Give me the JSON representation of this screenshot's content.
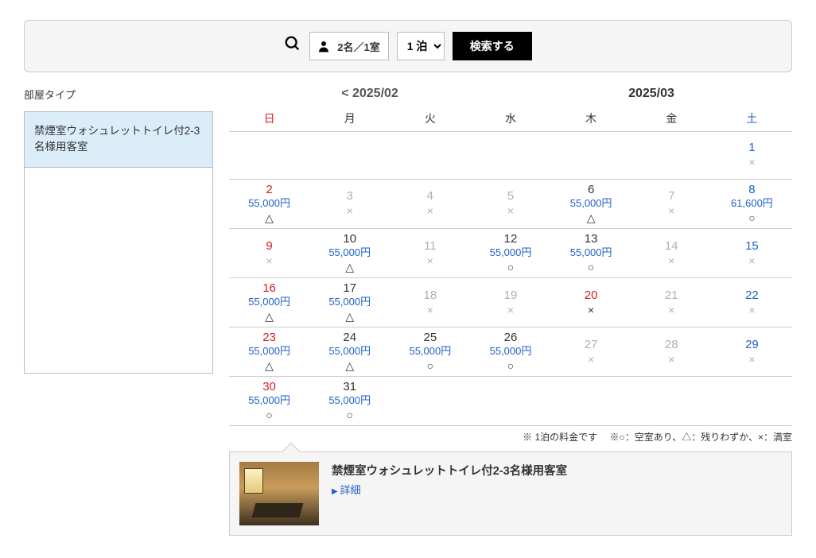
{
  "search": {
    "guests": "2名／1室",
    "nights_options": [
      "1 泊"
    ],
    "nights_selected": "1 泊",
    "button": "検索する"
  },
  "sidebar": {
    "title": "部屋タイプ",
    "items": [
      {
        "label": "禁煙室ウォシュレットトイレ付2-3名様用客室"
      }
    ]
  },
  "calendar": {
    "prev_month": "< 2025/02",
    "current_month": "2025/03",
    "day_headers": [
      "日",
      "月",
      "火",
      "水",
      "木",
      "金",
      "土"
    ],
    "weeks": [
      [
        {
          "blank": true
        },
        {
          "blank": true
        },
        {
          "blank": true
        },
        {
          "blank": true
        },
        {
          "blank": true
        },
        {
          "blank": true
        },
        {
          "day": "1",
          "avail": "×",
          "state": "disabled saturday"
        }
      ],
      [
        {
          "day": "2",
          "price": "55,000円",
          "avail": "△",
          "state": "sunday"
        },
        {
          "day": "3",
          "avail": "×",
          "state": "disabled"
        },
        {
          "day": "4",
          "avail": "×",
          "state": "disabled"
        },
        {
          "day": "5",
          "avail": "×",
          "state": "disabled"
        },
        {
          "day": "6",
          "price": "55,000円",
          "avail": "△",
          "state": ""
        },
        {
          "day": "7",
          "avail": "×",
          "state": "disabled"
        },
        {
          "day": "8",
          "price": "61,600円",
          "avail": "○",
          "state": "saturday"
        }
      ],
      [
        {
          "day": "9",
          "avail": "×",
          "state": "disabled sunday"
        },
        {
          "day": "10",
          "price": "55,000円",
          "avail": "△",
          "state": ""
        },
        {
          "day": "11",
          "avail": "×",
          "state": "disabled"
        },
        {
          "day": "12",
          "price": "55,000円",
          "avail": "○",
          "state": ""
        },
        {
          "day": "13",
          "price": "55,000円",
          "avail": "○",
          "state": ""
        },
        {
          "day": "14",
          "avail": "×",
          "state": "disabled"
        },
        {
          "day": "15",
          "avail": "×",
          "state": "disabled saturday"
        }
      ],
      [
        {
          "day": "16",
          "price": "55,000円",
          "avail": "△",
          "state": "sunday"
        },
        {
          "day": "17",
          "price": "55,000円",
          "avail": "△",
          "state": ""
        },
        {
          "day": "18",
          "avail": "×",
          "state": "disabled"
        },
        {
          "day": "19",
          "avail": "×",
          "state": "disabled"
        },
        {
          "day": "20",
          "avail": "×",
          "state": "holiday"
        },
        {
          "day": "21",
          "avail": "×",
          "state": "disabled"
        },
        {
          "day": "22",
          "avail": "×",
          "state": "disabled saturday"
        }
      ],
      [
        {
          "day": "23",
          "price": "55,000円",
          "avail": "△",
          "state": "sunday"
        },
        {
          "day": "24",
          "price": "55,000円",
          "avail": "△",
          "state": ""
        },
        {
          "day": "25",
          "price": "55,000円",
          "avail": "○",
          "state": ""
        },
        {
          "day": "26",
          "price": "55,000円",
          "avail": "○",
          "state": ""
        },
        {
          "day": "27",
          "avail": "×",
          "state": "disabled"
        },
        {
          "day": "28",
          "avail": "×",
          "state": "disabled"
        },
        {
          "day": "29",
          "avail": "×",
          "state": "disabled saturday"
        }
      ],
      [
        {
          "day": "30",
          "price": "55,000円",
          "avail": "○",
          "state": "sunday"
        },
        {
          "day": "31",
          "price": "55,000円",
          "avail": "○",
          "state": ""
        },
        {
          "blank": true
        },
        {
          "blank": true
        },
        {
          "blank": true
        },
        {
          "blank": true
        },
        {
          "blank": true
        }
      ]
    ],
    "legend": "※ 1泊の料金です　 ※○：空室あり、△：残りわずか、×：満室"
  },
  "detail": {
    "title": "禁煙室ウォシュレットトイレ付2-3名様用客室",
    "link": "詳細"
  }
}
